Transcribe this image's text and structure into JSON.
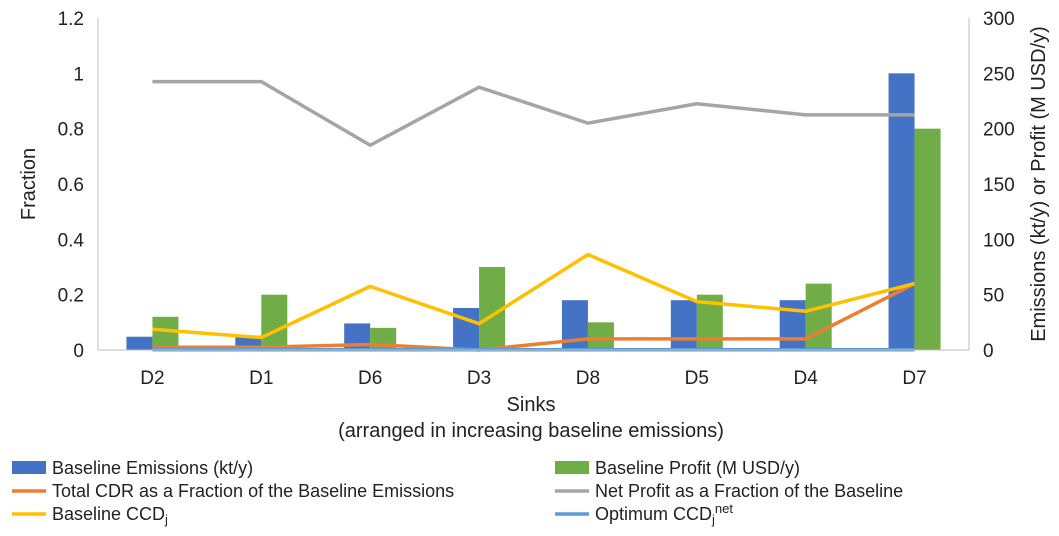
{
  "chart_data": {
    "type": "bar",
    "xlabel": "Sinks",
    "xlabel_sub": "(arranged in increasing baseline emissions)",
    "ylabel_left": "Fraction",
    "ylabel_right": "Emissions (kt/y) or Profit (M USD/y)",
    "categories": [
      "D2",
      "D1",
      "D6",
      "D3",
      "D8",
      "D5",
      "D4",
      "D7"
    ],
    "left_axis": {
      "min": 0,
      "max": 1.2,
      "ticks": [
        "0",
        "0.2",
        "0.4",
        "0.6",
        "0.8",
        "1",
        "1.2"
      ],
      "tick_values": [
        0,
        0.2,
        0.4,
        0.6,
        0.8,
        1.0,
        1.2
      ]
    },
    "right_axis": {
      "min": 0,
      "max": 300,
      "ticks": [
        "0",
        "50",
        "100",
        "150",
        "200",
        "250",
        "300"
      ],
      "tick_values": [
        0,
        50,
        100,
        150,
        200,
        250,
        300
      ]
    },
    "bar_series": [
      {
        "name": "Baseline Emissions (kt/y)",
        "color": "#4472C4",
        "axis": "right",
        "values": [
          12,
          13,
          24,
          38,
          45,
          45,
          45,
          250
        ]
      },
      {
        "name": "Baseline Profit (M USD/y)",
        "color": "#70AD47",
        "axis": "right",
        "values": [
          30,
          50,
          20,
          75,
          25,
          50,
          60,
          200
        ]
      }
    ],
    "line_series": [
      {
        "name": "Total CDR as a Fraction of the Baseline Emissions",
        "color": "#ED7D31",
        "axis": "left",
        "values": [
          0.01,
          0.01,
          0.02,
          0.0,
          0.04,
          0.04,
          0.04,
          0.24
        ]
      },
      {
        "name": "Net Profit as a Fraction of the Baseline",
        "color": "#A5A5A5",
        "axis": "left",
        "values": [
          0.97,
          0.97,
          0.74,
          0.95,
          0.82,
          0.89,
          0.85,
          0.85
        ]
      },
      {
        "name": "Baseline CCD",
        "sub": "j",
        "color": "#FFC000",
        "axis": "left",
        "values": [
          0.075,
          0.045,
          0.23,
          0.095,
          0.345,
          0.175,
          0.14,
          0.24
        ]
      },
      {
        "name": "Optimum CCD",
        "sub": "j",
        "sup": "net",
        "color": "#5B9BD5",
        "axis": "left",
        "values": [
          0.001,
          0.001,
          0.001,
          0.001,
          0.001,
          0.001,
          0.001,
          0.001
        ]
      }
    ],
    "grid": false,
    "legend_position": "bottom"
  }
}
